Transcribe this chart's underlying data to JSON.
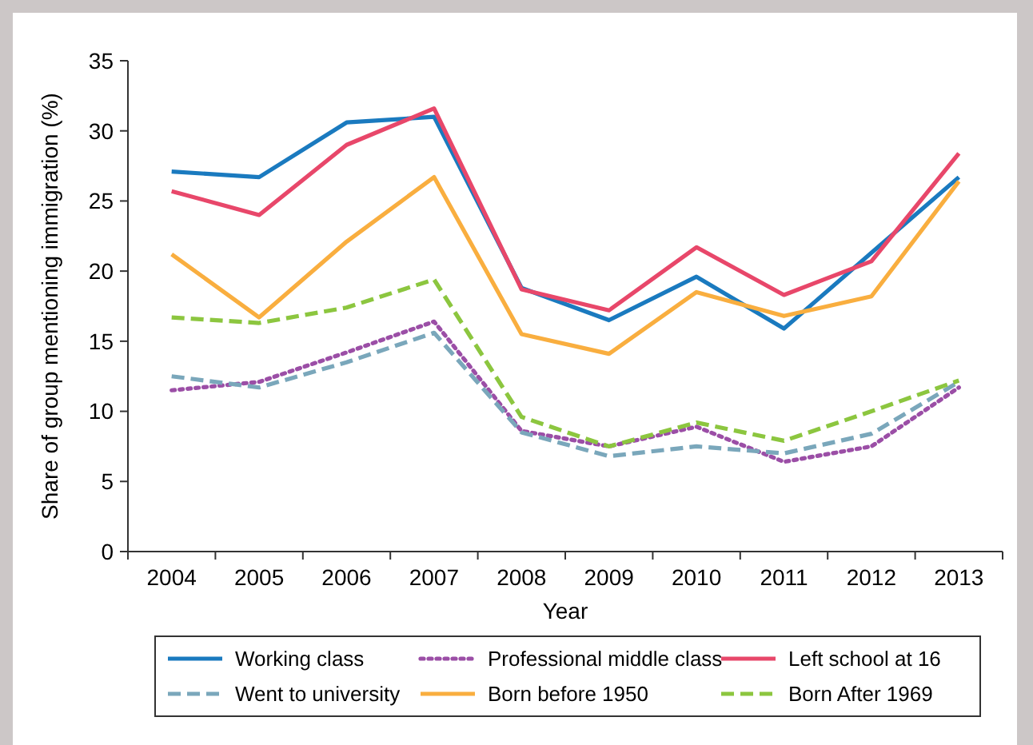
{
  "chart_data": {
    "type": "line",
    "xlabel": "Year",
    "ylabel": "Share of group mentioning immigration (%)",
    "categories": [
      "2004",
      "2005",
      "2006",
      "2007",
      "2008",
      "2009",
      "2010",
      "2011",
      "2012",
      "2013"
    ],
    "ylim": [
      0,
      35
    ],
    "yticks": [
      0,
      5,
      10,
      15,
      20,
      25,
      30,
      35
    ],
    "grid": false,
    "legend": "bottom",
    "marker": "none",
    "series": [
      {
        "name": "Working class",
        "color": "#1a7abf",
        "line_style": "solid",
        "values": [
          27.1,
          26.7,
          30.6,
          31.0,
          18.8,
          16.5,
          19.6,
          15.9,
          21.3,
          26.7
        ]
      },
      {
        "name": "Professional middle class",
        "color": "#9b4ea6",
        "line_style": "dotted",
        "values": [
          11.5,
          12.1,
          14.2,
          16.4,
          8.6,
          7.5,
          8.9,
          6.4,
          7.5,
          11.7
        ]
      },
      {
        "name": "Left school at 16",
        "color": "#e8476a",
        "line_style": "solid",
        "values": [
          25.7,
          24.0,
          29.0,
          31.6,
          18.7,
          17.2,
          21.7,
          18.3,
          20.7,
          28.4
        ]
      },
      {
        "name": "Went to university",
        "color": "#7aa7bb",
        "line_style": "dashed",
        "values": [
          12.5,
          11.7,
          13.5,
          15.6,
          8.5,
          6.8,
          7.5,
          7.0,
          8.4,
          12.1
        ]
      },
      {
        "name": "Born before 1950",
        "color": "#f9ae3f",
        "line_style": "solid",
        "values": [
          21.2,
          16.7,
          22.1,
          26.7,
          15.5,
          14.1,
          18.5,
          16.8,
          18.2,
          26.4
        ]
      },
      {
        "name": "Born After 1969",
        "color": "#8cc63f",
        "line_style": "dashed",
        "values": [
          16.7,
          16.3,
          17.4,
          19.4,
          9.6,
          7.5,
          9.2,
          7.9,
          10.0,
          12.2
        ]
      }
    ]
  }
}
